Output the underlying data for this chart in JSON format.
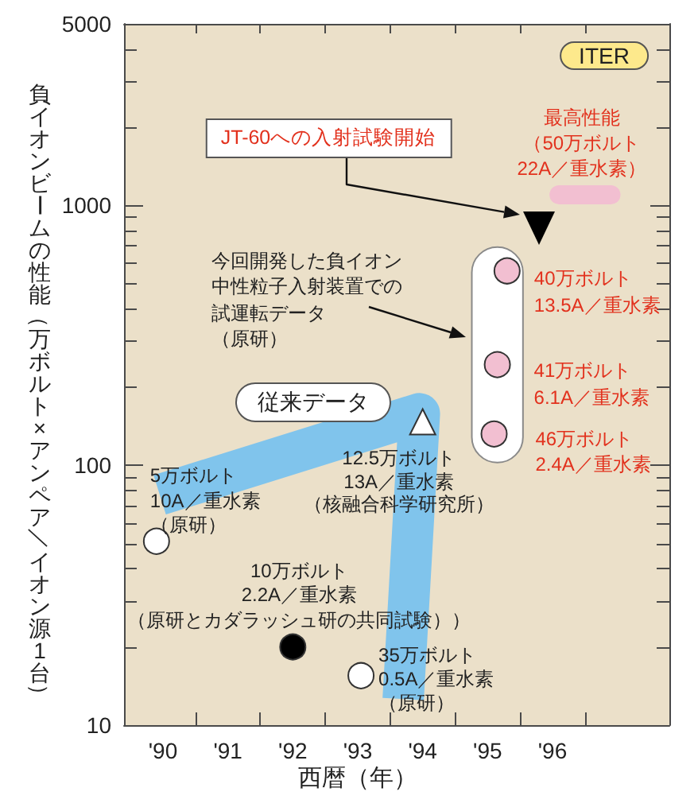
{
  "chart_data": {
    "type": "scatter",
    "xlabel": "西暦（年）",
    "ylabel": "負イオンビームの性能（万ボルト×アンペア／イオン源1台）",
    "annotations": [
      "JT-60への入射試験開始",
      "ITER",
      {
        "text": "最高性能（50万ボルト22A／重水素）",
        "x": 96.5,
        "y": 1100
      },
      "今回開発した負イオン中性粒子入射装置での試運転データ（原研）",
      {
        "text": "40万ボルト13.5A／重水素",
        "x": 95.3,
        "y": 560
      },
      {
        "text": "41万ボルト6.1A／重水素",
        "x": 95.15,
        "y": 244
      },
      {
        "text": "46万ボルト2.4A／重水素",
        "x": 95.1,
        "y": 132
      },
      {
        "text": "12.5万ボルト13A／重水素（核融合科学研究所）",
        "x": 94,
        "y": 147
      },
      {
        "text": "5万ボルト10A／重水素（原研）",
        "x": 89.9,
        "y": 51
      },
      {
        "text": "10万ボルト2.2A／重水素（原研とカダラッシュ研の共同試験））",
        "x": 92,
        "y": 20
      },
      {
        "text": "35万ボルト0.5A／重水素（原研）",
        "x": 93.05,
        "y": 15.5
      }
    ],
    "series": [
      {
        "type": "line",
        "name": "従来データ",
        "color": "#80c4ec",
        "marker": "none",
        "x": [
          89.95,
          93.95,
          93.7
        ],
        "values": [
          77,
          158,
          12.6
        ]
      },
      {
        "type": "line",
        "color": "#f2bfd1",
        "marker": "none",
        "x": [
          96.1,
          96.9
        ],
        "values": [
          1100,
          1100
        ]
      },
      {
        "color": "#ffffff",
        "marker": "circle",
        "x": [
          89.9,
          93.05
        ],
        "values": [
          51,
          15.5
        ]
      },
      {
        "color": "#000000",
        "marker": "circle",
        "x": [
          92
        ],
        "values": [
          20
        ]
      },
      {
        "color": "#ffffff",
        "marker": "triangle",
        "x": [
          94
        ],
        "values": [
          147
        ]
      },
      {
        "color": "#f2bfd1",
        "marker": "circle",
        "x": [
          95.3,
          95.15,
          95.1
        ],
        "values": [
          560,
          244,
          132
        ]
      }
    ],
    "xlim": [
      89.4,
      97.8
    ],
    "xticks": [
      {
        "value": 90,
        "label": "'90"
      },
      {
        "value": 90.5,
        "label": null
      },
      {
        "value": 91,
        "label": "'91"
      },
      {
        "value": 91.5,
        "label": null
      },
      {
        "value": 92,
        "label": "'92"
      },
      {
        "value": 92.5,
        "label": null
      },
      {
        "value": 93,
        "label": "'93"
      },
      {
        "value": 93.5,
        "label": null
      },
      {
        "value": 94,
        "label": "'94"
      },
      {
        "value": 94.5,
        "label": null
      },
      {
        "value": 95,
        "label": "'95"
      },
      {
        "value": 95.5,
        "label": null
      },
      {
        "value": 96,
        "label": "'96"
      },
      {
        "value": 96.5,
        "label": null
      }
    ],
    "ylim": [
      10,
      5000
    ],
    "yticks": [
      10,
      {
        "value": 20,
        "label": null
      },
      {
        "value": 30,
        "label": null
      },
      {
        "value": 40,
        "label": null
      },
      {
        "value": 50,
        "label": null
      },
      {
        "value": 60,
        "label": null
      },
      {
        "value": 70,
        "label": null
      },
      {
        "value": 80,
        "label": null
      },
      {
        "value": 90,
        "label": null
      },
      100,
      {
        "value": 200,
        "label": null
      },
      {
        "value": 300,
        "label": null
      },
      {
        "value": 400,
        "label": null
      },
      {
        "value": 500,
        "label": null
      },
      {
        "value": 600,
        "label": null
      },
      {
        "value": 700,
        "label": null
      },
      {
        "value": 800,
        "label": null
      },
      {
        "value": 900,
        "label": null
      },
      1000,
      {
        "value": 2000,
        "label": null
      },
      {
        "value": 3000,
        "label": null
      },
      {
        "value": 4000,
        "label": null
      },
      5000
    ],
    "log": true
  }
}
